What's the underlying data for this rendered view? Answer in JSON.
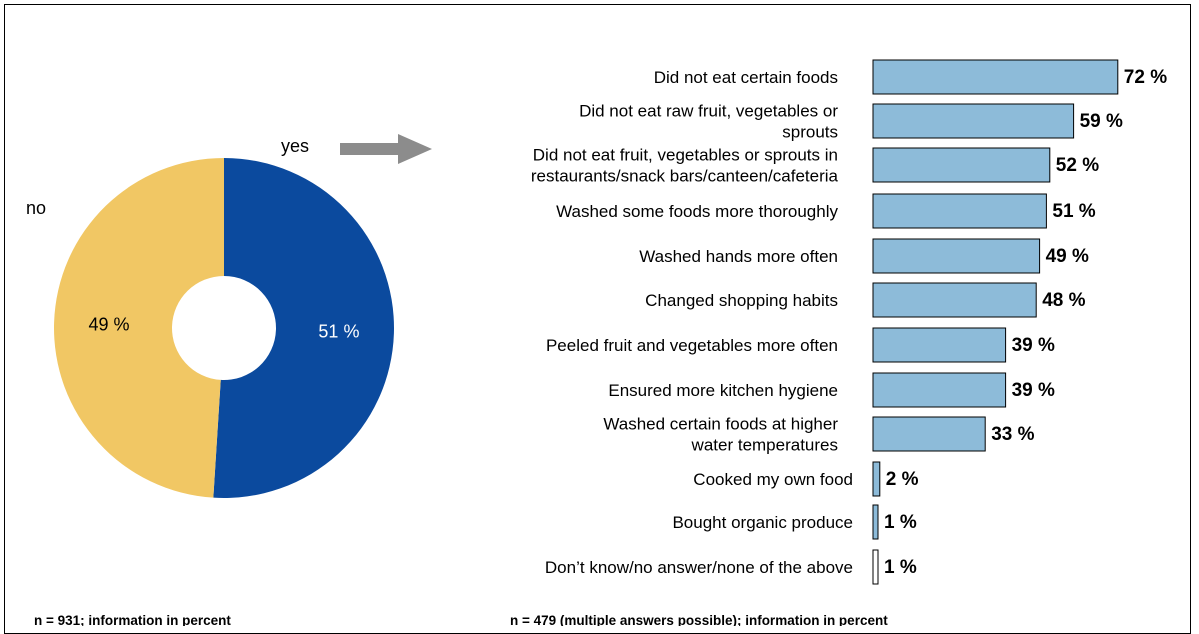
{
  "chart_data": [
    {
      "type": "pie",
      "categories": [
        "yes",
        "no"
      ],
      "values": [
        51,
        49
      ],
      "value_labels": [
        "51 %",
        "49 %"
      ],
      "colors": [
        "#0b4a9e",
        "#f1c764"
      ],
      "footnote": "n = 931; information in percent"
    },
    {
      "type": "bar",
      "orientation": "horizontal",
      "categories": [
        [
          "Did not eat certain foods"
        ],
        [
          "Did not eat raw fruit, vegetables or",
          "sprouts"
        ],
        [
          "Did not eat fruit, vegetables or sprouts in",
          "restaurants/snack bars/canteen/cafeteria"
        ],
        [
          "Washed some foods more thoroughly"
        ],
        [
          "Washed hands more often"
        ],
        [
          "Changed shopping habits"
        ],
        [
          "Peeled fruit and vegetables more often"
        ],
        [
          "Ensured more kitchen hygiene"
        ],
        [
          "Washed certain foods at higher",
          "water temperatures"
        ],
        [
          "Cooked my own food"
        ],
        [
          "Bought organic produce"
        ],
        [
          "Don’t know/no answer/none of the above"
        ]
      ],
      "values": [
        72,
        59,
        52,
        51,
        49,
        48,
        39,
        39,
        33,
        2,
        1,
        1
      ],
      "value_labels": [
        "72 %",
        "59 %",
        "52 %",
        "51 %",
        "49 %",
        "48 %",
        "39 %",
        "39 %",
        "33 %",
        "2 %",
        "1 %",
        "1 %"
      ],
      "bar_colors": [
        "#8dbbd9",
        "#8dbbd9",
        "#8dbbd9",
        "#8dbbd9",
        "#8dbbd9",
        "#8dbbd9",
        "#8dbbd9",
        "#8dbbd9",
        "#8dbbd9",
        "#8dbbd9",
        "#8dbbd9",
        "#ffffff"
      ],
      "footnote": "n = 479 (multiple answers possible); information in percent"
    }
  ]
}
